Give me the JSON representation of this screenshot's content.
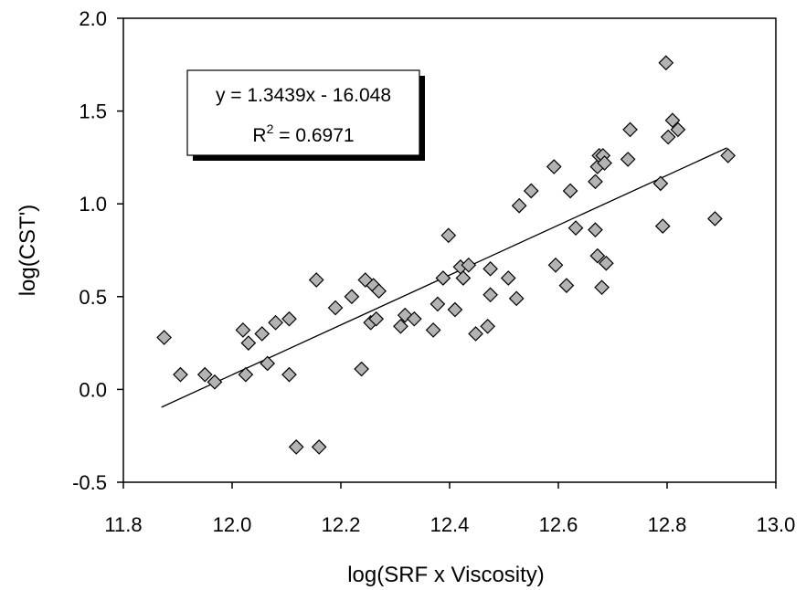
{
  "chart_data": {
    "type": "scatter",
    "xlabel": "log(SRF x Viscosity)",
    "ylabel": "log(CST')",
    "xlim": [
      11.8,
      13.0
    ],
    "ylim": [
      -0.5,
      2.0
    ],
    "xticks": [
      "11.8",
      "12.0",
      "12.2",
      "12.4",
      "12.6",
      "12.8",
      "13.0"
    ],
    "yticks": [
      "-0.5",
      "0.0",
      "0.5",
      "1.0",
      "1.5",
      "2.0"
    ],
    "grid": false,
    "marker": "diamond",
    "marker_color": "#b3b3b3",
    "trendline": {
      "type": "linear",
      "slope": 1.3439,
      "intercept": -16.048,
      "x_range": [
        11.87,
        12.91
      ],
      "equation": "y = 1.3439x - 16.048",
      "r2_label": "R",
      "r2_sup": "2",
      "r2_value": " = 0.6971"
    },
    "points": [
      [
        11.875,
        0.28
      ],
      [
        11.905,
        0.08
      ],
      [
        11.95,
        0.08
      ],
      [
        11.968,
        0.04
      ],
      [
        12.02,
        0.32
      ],
      [
        12.025,
        0.08
      ],
      [
        12.03,
        0.25
      ],
      [
        12.055,
        0.3
      ],
      [
        12.065,
        0.14
      ],
      [
        12.08,
        0.36
      ],
      [
        12.105,
        0.38
      ],
      [
        12.105,
        0.08
      ],
      [
        12.118,
        -0.31
      ],
      [
        12.155,
        0.59
      ],
      [
        12.16,
        -0.31
      ],
      [
        12.19,
        0.44
      ],
      [
        12.22,
        0.5
      ],
      [
        12.238,
        0.11
      ],
      [
        12.245,
        0.59
      ],
      [
        12.255,
        0.36
      ],
      [
        12.26,
        0.56
      ],
      [
        12.265,
        0.38
      ],
      [
        12.27,
        0.53
      ],
      [
        12.31,
        0.34
      ],
      [
        12.318,
        0.4
      ],
      [
        12.335,
        0.38
      ],
      [
        12.37,
        0.32
      ],
      [
        12.378,
        0.46
      ],
      [
        12.388,
        0.6
      ],
      [
        12.398,
        0.83
      ],
      [
        12.41,
        0.43
      ],
      [
        12.42,
        0.66
      ],
      [
        12.425,
        0.6
      ],
      [
        12.435,
        0.67
      ],
      [
        12.448,
        0.3
      ],
      [
        12.47,
        0.34
      ],
      [
        12.475,
        0.51
      ],
      [
        12.475,
        0.65
      ],
      [
        12.508,
        0.6
      ],
      [
        12.523,
        0.49
      ],
      [
        12.528,
        0.99
      ],
      [
        12.55,
        1.07
      ],
      [
        12.592,
        1.2
      ],
      [
        12.595,
        0.67
      ],
      [
        12.615,
        0.56
      ],
      [
        12.622,
        1.07
      ],
      [
        12.632,
        0.87
      ],
      [
        12.668,
        0.86
      ],
      [
        12.668,
        1.12
      ],
      [
        12.672,
        1.2
      ],
      [
        12.672,
        0.72
      ],
      [
        12.675,
        1.26
      ],
      [
        12.68,
        0.55
      ],
      [
        12.682,
        1.26
      ],
      [
        12.685,
        1.22
      ],
      [
        12.688,
        0.68
      ],
      [
        12.728,
        1.24
      ],
      [
        12.732,
        1.4
      ],
      [
        12.788,
        1.11
      ],
      [
        12.792,
        0.88
      ],
      [
        12.798,
        1.76
      ],
      [
        12.802,
        1.36
      ],
      [
        12.81,
        1.45
      ],
      [
        12.82,
        1.4
      ],
      [
        12.888,
        0.92
      ],
      [
        12.912,
        1.26
      ]
    ]
  }
}
